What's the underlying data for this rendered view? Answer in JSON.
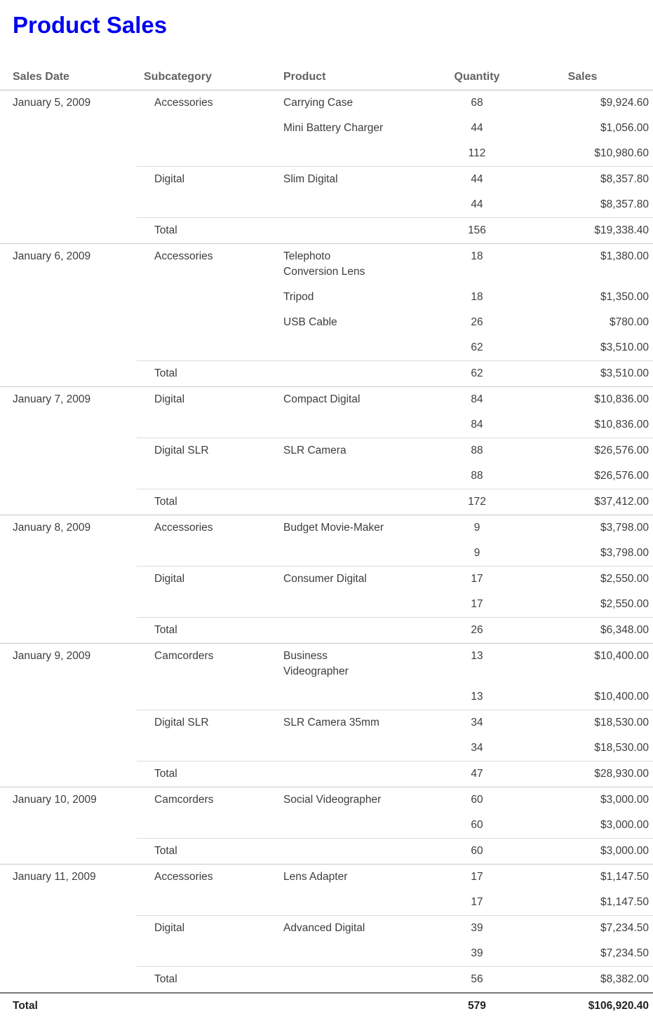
{
  "report": {
    "title": "Product Sales",
    "title_color": "#0000F0",
    "header_text_color": "#636363",
    "body_text_color": "#3d3d3d"
  },
  "table": {
    "columns": [
      {
        "label": "Sales Date"
      },
      {
        "label": "Subcategory"
      },
      {
        "label": "Product"
      },
      {
        "label": "Quantity"
      },
      {
        "label": "Sales"
      }
    ],
    "total_label": "Total",
    "groups": [
      {
        "date": "January 5, 2009",
        "subgroups": [
          {
            "subcategory": "Accessories",
            "rows": [
              {
                "product": "Carrying Case",
                "quantity": "68",
                "sales": "$9,924.60"
              },
              {
                "product": "Mini Battery Charger",
                "quantity": "44",
                "sales": "$1,056.00"
              }
            ],
            "subtotal": {
              "quantity": "112",
              "sales": "$10,980.60"
            }
          },
          {
            "subcategory": "Digital",
            "rows": [
              {
                "product": "Slim Digital",
                "quantity": "44",
                "sales": "$8,357.80"
              }
            ],
            "subtotal": {
              "quantity": "44",
              "sales": "$8,357.80"
            }
          }
        ],
        "total": {
          "quantity": "156",
          "sales": "$19,338.40"
        }
      },
      {
        "date": "January 6, 2009",
        "subgroups": [
          {
            "subcategory": "Accessories",
            "rows": [
              {
                "product": "Telephoto\nConversion Lens",
                "quantity": "18",
                "sales": "$1,380.00"
              },
              {
                "product": "Tripod",
                "quantity": "18",
                "sales": "$1,350.00"
              },
              {
                "product": "USB Cable",
                "quantity": "26",
                "sales": "$780.00"
              }
            ],
            "subtotal": {
              "quantity": "62",
              "sales": "$3,510.00"
            }
          }
        ],
        "total": {
          "quantity": "62",
          "sales": "$3,510.00"
        }
      },
      {
        "date": "January 7, 2009",
        "subgroups": [
          {
            "subcategory": "Digital",
            "rows": [
              {
                "product": "Compact Digital",
                "quantity": "84",
                "sales": "$10,836.00"
              }
            ],
            "subtotal": {
              "quantity": "84",
              "sales": "$10,836.00"
            }
          },
          {
            "subcategory": "Digital SLR",
            "rows": [
              {
                "product": "SLR Camera",
                "quantity": "88",
                "sales": "$26,576.00"
              }
            ],
            "subtotal": {
              "quantity": "88",
              "sales": "$26,576.00"
            }
          }
        ],
        "total": {
          "quantity": "172",
          "sales": "$37,412.00"
        }
      },
      {
        "date": "January 8, 2009",
        "subgroups": [
          {
            "subcategory": "Accessories",
            "rows": [
              {
                "product": "Budget Movie-Maker",
                "quantity": "9",
                "sales": "$3,798.00"
              }
            ],
            "subtotal": {
              "quantity": "9",
              "sales": "$3,798.00"
            }
          },
          {
            "subcategory": "Digital",
            "rows": [
              {
                "product": "Consumer Digital",
                "quantity": "17",
                "sales": "$2,550.00"
              }
            ],
            "subtotal": {
              "quantity": "17",
              "sales": "$2,550.00"
            }
          }
        ],
        "total": {
          "quantity": "26",
          "sales": "$6,348.00"
        }
      },
      {
        "date": "January 9, 2009",
        "subgroups": [
          {
            "subcategory": "Camcorders",
            "rows": [
              {
                "product": "Business\nVideographer",
                "quantity": "13",
                "sales": "$10,400.00"
              }
            ],
            "subtotal": {
              "quantity": "13",
              "sales": "$10,400.00"
            }
          },
          {
            "subcategory": "Digital SLR",
            "rows": [
              {
                "product": "SLR Camera 35mm",
                "quantity": "34",
                "sales": "$18,530.00"
              }
            ],
            "subtotal": {
              "quantity": "34",
              "sales": "$18,530.00"
            }
          }
        ],
        "total": {
          "quantity": "47",
          "sales": "$28,930.00"
        }
      },
      {
        "date": "January 10, 2009",
        "subgroups": [
          {
            "subcategory": "Camcorders",
            "rows": [
              {
                "product": "Social Videographer",
                "quantity": "60",
                "sales": "$3,000.00"
              }
            ],
            "subtotal": {
              "quantity": "60",
              "sales": "$3,000.00"
            }
          }
        ],
        "total": {
          "quantity": "60",
          "sales": "$3,000.00"
        }
      },
      {
        "date": "January 11, 2009",
        "subgroups": [
          {
            "subcategory": "Accessories",
            "rows": [
              {
                "product": "Lens Adapter",
                "quantity": "17",
                "sales": "$1,147.50"
              }
            ],
            "subtotal": {
              "quantity": "17",
              "sales": "$1,147.50"
            }
          },
          {
            "subcategory": "Digital",
            "rows": [
              {
                "product": "Advanced Digital",
                "quantity": "39",
                "sales": "$7,234.50"
              }
            ],
            "subtotal": {
              "quantity": "39",
              "sales": "$7,234.50"
            }
          }
        ],
        "total": {
          "quantity": "56",
          "sales": "$8,382.00"
        }
      }
    ],
    "grand_total": {
      "label": "Total",
      "quantity": "579",
      "sales": "$106,920.40"
    }
  }
}
